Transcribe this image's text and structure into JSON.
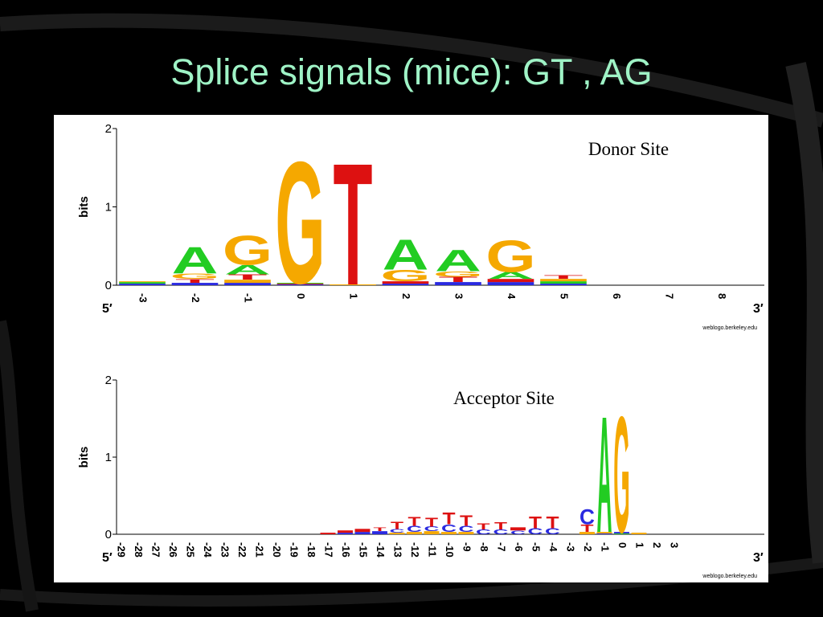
{
  "slide": {
    "title": "Splice signals (mice): GT , AG"
  },
  "colors": {
    "background": "#000000",
    "title": "#9ff3c6",
    "A": "#22cc22",
    "C": "#2a2ae0",
    "G": "#f5a800",
    "T": "#dd1111"
  },
  "chart_data": [
    {
      "type": "sequence-logo",
      "title": "Donor Site",
      "ylabel": "bits",
      "ylim": [
        0,
        2
      ],
      "yticks": [
        "0",
        "1",
        "2"
      ],
      "left_end": "5′",
      "right_end": "3′",
      "credit": "weblogo.berkeley.edu",
      "positions": [
        "-3",
        "-2",
        "-1",
        "0",
        "1",
        "2",
        "3",
        "4",
        "5",
        "6",
        "7",
        "8"
      ],
      "stacks": [
        [
          [
            "C",
            0.02
          ],
          [
            "A",
            0.02
          ],
          [
            "G",
            0.01
          ]
        ],
        [
          [
            "C",
            0.03
          ],
          [
            "T",
            0.05
          ],
          [
            "G",
            0.07
          ],
          [
            "A",
            0.35
          ]
        ],
        [
          [
            "C",
            0.03
          ],
          [
            "G",
            0.04
          ],
          [
            "T",
            0.07
          ],
          [
            "A",
            0.12
          ],
          [
            "G",
            0.38
          ]
        ],
        [
          [
            "C",
            0.01
          ],
          [
            "T",
            0.01
          ],
          [
            "A",
            0.01
          ],
          [
            "G",
            1.6
          ]
        ],
        [
          [
            "G",
            0.01
          ],
          [
            "T",
            1.6
          ]
        ],
        [
          [
            "C",
            0.02
          ],
          [
            "T",
            0.03
          ],
          [
            "G",
            0.15
          ],
          [
            "A",
            0.4
          ]
        ],
        [
          [
            "C",
            0.04
          ],
          [
            "T",
            0.07
          ],
          [
            "G",
            0.07
          ],
          [
            "A",
            0.28
          ]
        ],
        [
          [
            "C",
            0.04
          ],
          [
            "T",
            0.04
          ],
          [
            "A",
            0.09
          ],
          [
            "G",
            0.42
          ]
        ],
        [
          [
            "C",
            0.02
          ],
          [
            "A",
            0.03
          ],
          [
            "G",
            0.03
          ],
          [
            "T",
            0.05
          ]
        ],
        [],
        [],
        []
      ]
    },
    {
      "type": "sequence-logo",
      "title": "Acceptor Site",
      "ylabel": "bits",
      "ylim": [
        0,
        2
      ],
      "yticks": [
        "0",
        "1",
        "2"
      ],
      "left_end": "5′",
      "right_end": "3′",
      "credit": "weblogo.berkeley.edu",
      "positions": [
        "-29",
        "-28",
        "-27",
        "-26",
        "-25",
        "-24",
        "-23",
        "-22",
        "-21",
        "-20",
        "-19",
        "-18",
        "-17",
        "-16",
        "-15",
        "-14",
        "-13",
        "-12",
        "-11",
        "-10",
        "-9",
        "-8",
        "-7",
        "-6",
        "-5",
        "-4",
        "-3",
        "-2",
        "-1",
        "0",
        "1",
        "2",
        "3"
      ],
      "stacks": [
        [],
        [],
        [],
        [],
        [],
        [],
        [],
        [],
        [],
        [],
        [],
        [],
        [
          [
            "T",
            0.02
          ]
        ],
        [
          [
            "C",
            0.02
          ],
          [
            "T",
            0.03
          ]
        ],
        [
          [
            "C",
            0.03
          ],
          [
            "T",
            0.04
          ]
        ],
        [
          [
            "C",
            0.04
          ],
          [
            "T",
            0.05
          ]
        ],
        [
          [
            "G",
            0.02
          ],
          [
            "C",
            0.05
          ],
          [
            "T",
            0.1
          ]
        ],
        [
          [
            "G",
            0.03
          ],
          [
            "C",
            0.08
          ],
          [
            "T",
            0.12
          ]
        ],
        [
          [
            "G",
            0.04
          ],
          [
            "C",
            0.06
          ],
          [
            "T",
            0.12
          ]
        ],
        [
          [
            "G",
            0.03
          ],
          [
            "C",
            0.1
          ],
          [
            "T",
            0.16
          ]
        ],
        [
          [
            "G",
            0.03
          ],
          [
            "C",
            0.08
          ],
          [
            "T",
            0.14
          ]
        ],
        [
          [
            "C",
            0.06
          ],
          [
            "T",
            0.08
          ]
        ],
        [
          [
            "C",
            0.06
          ],
          [
            "T",
            0.1
          ]
        ],
        [
          [
            "C",
            0.05
          ],
          [
            "T",
            0.04
          ]
        ],
        [
          [
            "C",
            0.08
          ],
          [
            "T",
            0.16
          ]
        ],
        [
          [
            "C",
            0.08
          ],
          [
            "T",
            0.16
          ]
        ],
        [],
        [
          [
            "G",
            0.03
          ],
          [
            "T",
            0.1
          ],
          [
            "C",
            0.2
          ]
        ],
        [
          [
            "C",
            0.01
          ],
          [
            "G",
            0.02
          ],
          [
            "A",
            1.55
          ]
        ],
        [
          [
            "A",
            0.01
          ],
          [
            "C",
            0.02
          ],
          [
            "G",
            1.55
          ]
        ],
        [
          [
            "G",
            0.02
          ]
        ],
        [],
        []
      ]
    }
  ]
}
